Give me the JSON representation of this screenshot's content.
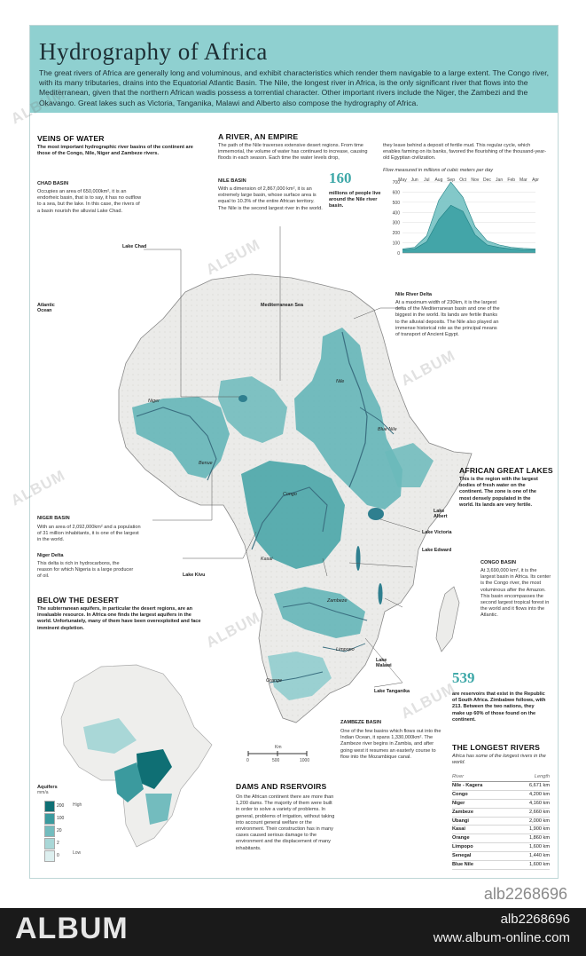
{
  "title": "Hydrography of Africa",
  "intro": "The great rivers of Africa are generally long and voluminous, and exhibit characteristics which render them navigable to a large extent. The Congo river, with its many tributaries, drains into the Equatorial Atlantic Basin. The Nile, the longest river in Africa, is the only significant river that flows into the Mediterranean, given that the northern African wadis possess a torrential character. Other important rivers include the Niger, the Zambezi and the Okavango. Great lakes such as Victoria, Tanganika, Malawi and Alberto also compose the hydrography of Africa.",
  "veins": {
    "heading": "VEINS OF WATER",
    "sub": "The most important hydrographic river basins of the continent are those of the Congo, Nile, Niger and Zambeze rivers."
  },
  "chad": {
    "heading": "CHAD BASIN",
    "text": "Occupies an area of 650,000km², it is an endorheic basin, that is to say, it has no outflow to a sea, but the lake. In this case, the rivers of a basin nourish the alluvial Lake Chad."
  },
  "empire": {
    "heading": "A RIVER, AN EMPIRE",
    "text1": "The path of the Nile traverses extensive desert regions. From time immemorial, the volume of water has continued to increase, causing floods in each season. Each time the water levels drop,",
    "text2": "they leave behind a deposit of fertile mud. This regular cycle, which enables farming on its banks, favored the flourishing of the thousand-year-old Egyptian civilization."
  },
  "nile": {
    "heading": "NILE BASIN",
    "text": "With a dimension of 2,867,000 km², it is an extremely large basin, whose surface area is equal to 10.3% of the entire African territory. The Nile is the second largest river in the world."
  },
  "stat160": {
    "num": "160",
    "text": "millions of people live around the Nile river basin."
  },
  "chart_data": {
    "type": "area",
    "title": "Flow measured in millions of cubic meters per day",
    "categories": [
      "May",
      "Jun",
      "Jul",
      "Aug",
      "Sep",
      "Oct",
      "Nov",
      "Dec",
      "Jan",
      "Feb",
      "Mar",
      "Apr"
    ],
    "series": [
      {
        "values": [
          40,
          55,
          170,
          520,
          700,
          550,
          260,
          120,
          80,
          55,
          45,
          40
        ]
      },
      {
        "values": [
          30,
          40,
          110,
          330,
          470,
          410,
          180,
          80,
          55,
          40,
          32,
          30
        ]
      }
    ],
    "ylim": [
      0,
      700
    ],
    "yticks": [
      0,
      100,
      200,
      300,
      400,
      500,
      600,
      700
    ],
    "grid": true
  },
  "delta": {
    "heading": "Nile River Delta",
    "text": "At a maximum width of 230km, it is the largest delta of the Mediterranean basin and one of the biggest in the world. Its lands are fertile thanks to the alluvial deposits. The Nile also played an immense historical role as the principal means of transport of Ancient Egypt."
  },
  "lakes": {
    "heading": "AFRICAN GREAT LAKES",
    "text": "This is the region with the largest bodies of fresh water on the continent. The zone is one of the most densely populated in the world. Its lands are very fertile."
  },
  "niger": {
    "heading": "NIGER BASIN",
    "text": "With an area of 2,092,000km² and a population of 31 million inhabitants, it is one of the largest in the world."
  },
  "nigerdelta": {
    "heading": "Niger Delta",
    "text": "This delta is rich in hydrocarbons, the reason for which Nigeria is a large producer of oil."
  },
  "congo": {
    "heading": "CONGO BASIN",
    "text": "At 3,690,000 km², it is the largest basin in Africa. Its center is the Congo river, the most voluminous after the Amazon. This basin encompasses the second largest tropical forest in the world and it flows into the Atlantic."
  },
  "desert": {
    "heading": "BELOW THE DESERT",
    "text": "The subterranean aquifers, in particular the desert regions, are an invaluable resource. In Africa one finds the largest aquifers in the world. Unfortunately, many of them have been overexploited and face imminent depletion."
  },
  "zambeze": {
    "heading": "ZAMBEZE BASIN",
    "text": "One of the few basins which flows out into the Indian Ocean, it spans 1,330,000km². The Zambeze river begins in Zambia, and after going west it resumes an easterly course to flow into the Mozambique canal."
  },
  "stat539": {
    "num": "539",
    "text": "are reservoirs that exist in the Republic of South Africa. Zimbabwe follows, with 213. Between the two nations, they make up 60% of those found on the continent."
  },
  "dams": {
    "heading": "DAMS AND RSERVOIRS",
    "text": "On the African continent there are more than 1,200 dams. The majority of them were built in order to solve a variety of problems. In general, problems of irrigation, without taking into account general welfare or the environment. Their construction has in many cases caused serious damage to the environment and the displacement of many inhabitants."
  },
  "longest": {
    "heading": "THE LONGEST RIVERS",
    "sub": "Africa has some of the longest rivers in the world.",
    "col_river": "River",
    "col_length": "Length",
    "rows": [
      {
        "name": "Nile - Kagera",
        "length": "6,671 km"
      },
      {
        "name": "Congo",
        "length": "4,200 km"
      },
      {
        "name": "Niger",
        "length": "4,160 km"
      },
      {
        "name": "Zambeze",
        "length": "2,660 km"
      },
      {
        "name": "Ubangi",
        "length": "2,000 km"
      },
      {
        "name": "Kasai",
        "length": "1,900 km"
      },
      {
        "name": "Orange",
        "length": "1,860 km"
      },
      {
        "name": "Limpopo",
        "length": "1,600 km"
      },
      {
        "name": "Senegal",
        "length": "1,440 km"
      },
      {
        "name": "Blue Nile",
        "length": "1,600 km"
      }
    ]
  },
  "legend": {
    "title": "Aquifers",
    "unit": "mm/a",
    "high": "High",
    "low": "Low",
    "ticks": [
      "200",
      "100",
      "20",
      "2",
      "0"
    ],
    "colors": [
      "#0f6f74",
      "#3b9a9e",
      "#73bcbe",
      "#a9d7d7",
      "#ddefef"
    ]
  },
  "scale": {
    "unit": "Km",
    "ticks": [
      "0",
      "500",
      "1000"
    ]
  },
  "places": {
    "lake_chad": "Lake Chad",
    "atlantic": "Atlantic Ocean",
    "mediterranean": "Mediterranean Sea",
    "lake_albert": "Lake Albert",
    "lake_victoria": "Lake Victoria",
    "lake_edward": "Lake Edward",
    "lake_kivu": "Lake Kivu",
    "lake_malawi": "Lake Malawi",
    "lake_tanganika": "Lake Tanganika",
    "niger_r": "Niger",
    "benue": "Benue",
    "nile_r": "Nile",
    "blue_nile": "Blue Nile",
    "congo_r": "Congo",
    "zambeze_r": "Zambeze",
    "orange_r": "Orange",
    "limpopo_r": "Limpopo",
    "kasai_r": "Kasai"
  },
  "colors": {
    "header": "#8fd0d0",
    "basin": "#4faaad",
    "land": "#ececea",
    "accent": "#3ea8a8"
  },
  "watermark": "ALBUM",
  "brand": "ALBUM",
  "image_id": "alb2268696",
  "image_id2": "alb2268696",
  "site": "www.album-online.com"
}
